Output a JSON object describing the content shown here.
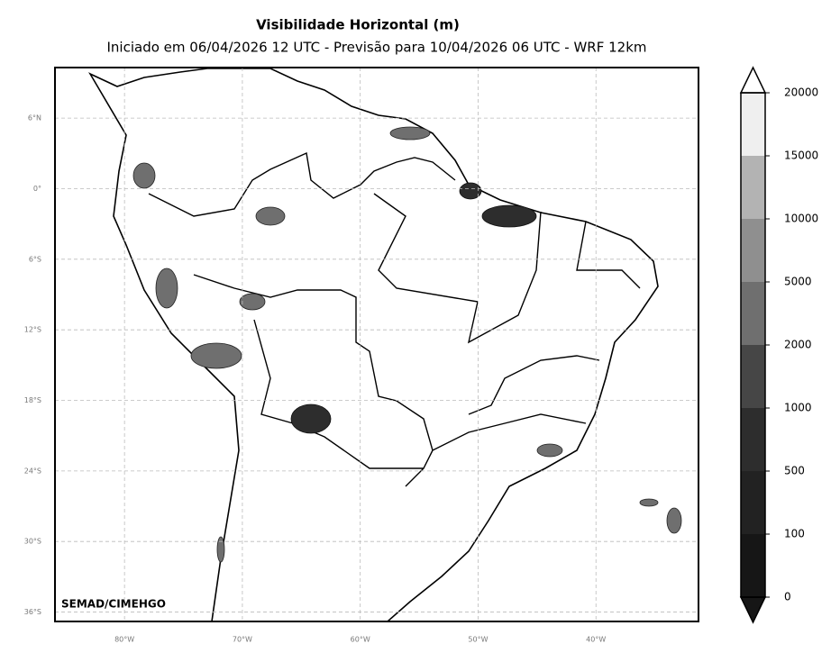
{
  "map": {
    "title": "Visibilidade Horizontal (m)",
    "subtitle": "Iniciado em 06/04/2026 12 UTC - Previsão para 10/04/2026 06 UTC - WRF 12km",
    "credit": "SEMAD/CIMEHGO",
    "xlim": [
      -85.9,
      -31.3
    ],
    "ylim": [
      -36.8,
      10.3
    ],
    "xticks": [
      {
        "value": -80,
        "label": "80°W"
      },
      {
        "value": -70,
        "label": "70°W"
      },
      {
        "value": -60,
        "label": "60°W"
      },
      {
        "value": -50,
        "label": "50°W"
      },
      {
        "value": -40,
        "label": "40°W"
      }
    ],
    "yticks": [
      {
        "value": 6,
        "label": "6°N"
      },
      {
        "value": 0,
        "label": "0°"
      },
      {
        "value": -6,
        "label": "6°S"
      },
      {
        "value": -12,
        "label": "12°S"
      },
      {
        "value": -18,
        "label": "18°S"
      },
      {
        "value": -24,
        "label": "24°S"
      },
      {
        "value": -30,
        "label": "30°S"
      },
      {
        "value": -36,
        "label": "36°S"
      }
    ],
    "grid": true,
    "colorbar": {
      "levels": [
        0,
        100,
        500,
        1000,
        2000,
        5000,
        10000,
        15000,
        20000
      ],
      "colors": [
        "#161616",
        "#222222",
        "#2d2d2d",
        "#464646",
        "#6f6f6f",
        "#8f8f8f",
        "#b3b3b3",
        "#efefef"
      ]
    }
  }
}
